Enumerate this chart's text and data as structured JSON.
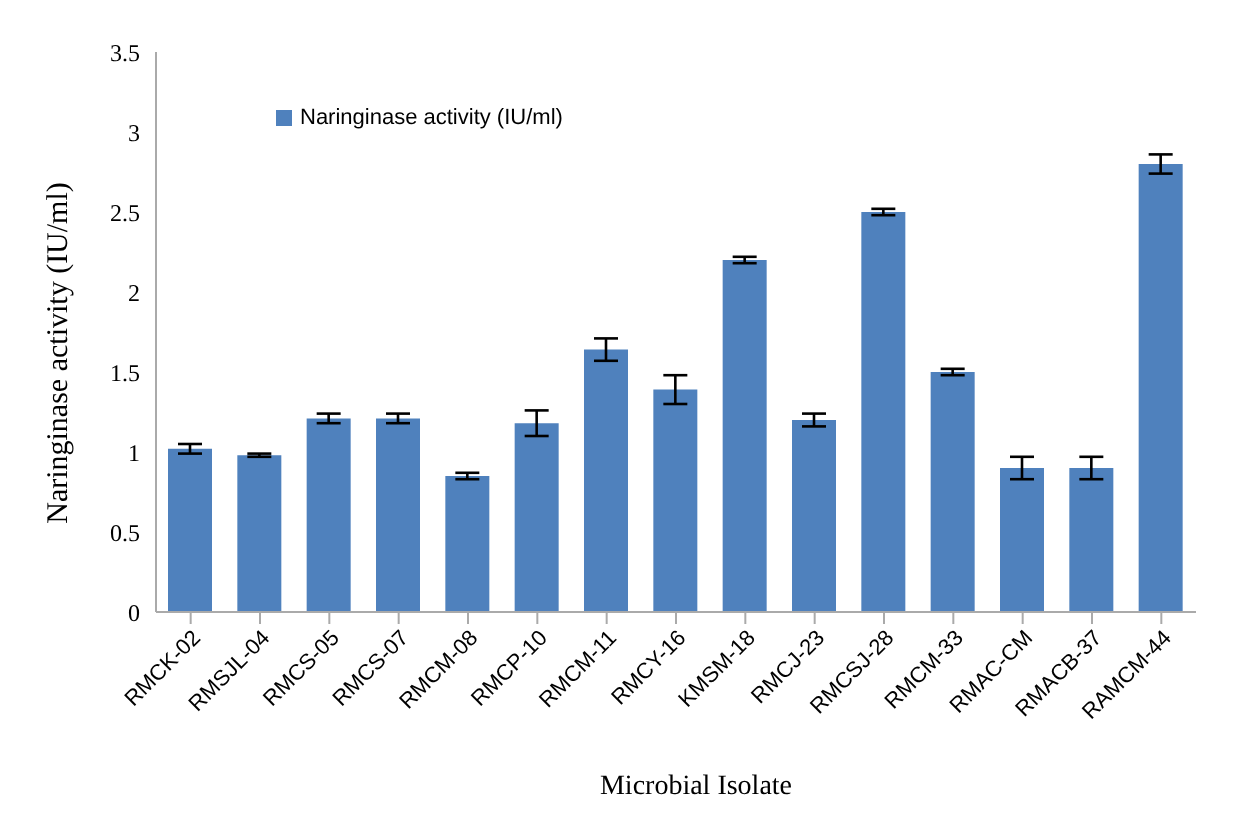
{
  "chart_data": {
    "type": "bar",
    "xlabel": "Microbial Isolate",
    "ylabel": "Naringinase activity (IU/ml)",
    "categories": [
      "RMCK-02",
      "RMSJL-04",
      "RMCS-05",
      "RMCS-07",
      "RMCM-08",
      "RMCP-10",
      "RMCM-11",
      "RMCY-16",
      "KMSM-18",
      "RMCJ-23",
      "RMCSJ-28",
      "RMCM-33",
      "RMAC-CM",
      "RMACB-37",
      "RAMCM-44"
    ],
    "series": [
      {
        "name": "Naringinase activity (IU/ml)",
        "color": "#4f81bd",
        "values": [
          1.02,
          0.98,
          1.21,
          1.21,
          0.85,
          1.18,
          1.64,
          1.39,
          2.2,
          1.2,
          2.5,
          1.5,
          0.9,
          0.9,
          2.8
        ],
        "errors": [
          0.03,
          0.01,
          0.03,
          0.03,
          0.02,
          0.08,
          0.07,
          0.09,
          0.02,
          0.04,
          0.02,
          0.02,
          0.07,
          0.07,
          0.06
        ]
      }
    ],
    "ylim": [
      0,
      3.5
    ],
    "yticks": [
      0,
      0.5,
      1,
      1.5,
      2,
      2.5,
      3,
      3.5
    ],
    "grid": false,
    "legend": "top left"
  }
}
